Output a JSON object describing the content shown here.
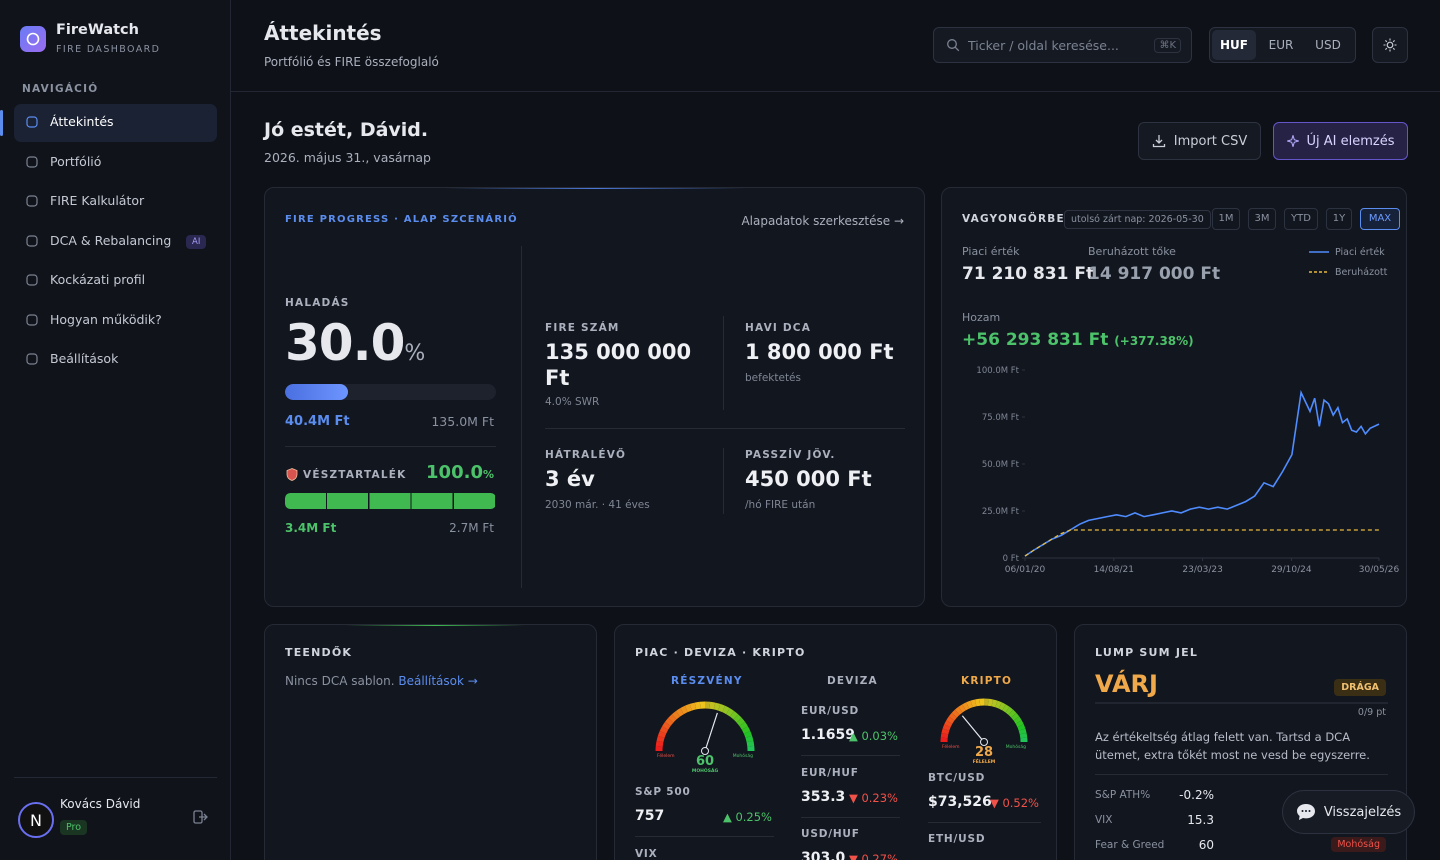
{
  "sidebar": {
    "app_name": "FireWatch",
    "app_subtitle": "FIRE DASHBOARD",
    "nav_heading": "NAVIGÁCIÓ",
    "nav": [
      "Áttekintés",
      "Portfólió",
      "FIRE Kalkulátor",
      "DCA & Rebalancing",
      "Kockázati profil",
      "Hogyan működik?",
      "Beállítások"
    ],
    "nav_badge": "AI",
    "user": {
      "initial": "N",
      "name": "Kovács Dávid",
      "plan": "Pro"
    }
  },
  "header": {
    "title": "Áttekintés",
    "subtitle": "Portfólió és FIRE összefoglaló",
    "search_placeholder": "Ticker / oldal keresése...",
    "search_shortcut": "⌘K",
    "currencies": [
      "HUF",
      "EUR",
      "USD"
    ]
  },
  "greeting": {
    "title": "Jó estét, Dávid.",
    "date": "2026. május 31., vasárnap",
    "buttons": [
      "Import CSV",
      "Új AI elemzés"
    ]
  },
  "fire": {
    "title": "FIRE PROGRESS · ALAP SZCENÁRIÓ",
    "edit_link": "Alapadatok szerkesztése →",
    "progress": {
      "label": "HALADÁS",
      "value": 30,
      "value_label": "30.0",
      "unit": "%",
      "current": "40.4M Ft",
      "target": "135.0M Ft"
    },
    "emergency": {
      "label": "VÉSZTARTALÉK",
      "value": 100,
      "value_label": "100.0",
      "unit": "%",
      "current": "3.4M Ft",
      "target": "2.7M Ft"
    },
    "stats": [
      {
        "label": "FIRE SZÁM",
        "value": "135 000 000 Ft",
        "note": "4.0% SWR"
      },
      {
        "label": "HAVI DCA",
        "value": "1 800 000 Ft",
        "note": "befektetés"
      },
      {
        "label": "HÁTRALÉVŐ",
        "value": "3 év",
        "note": "2030 már. · 41 éves"
      },
      {
        "label": "PASSZÍV JÖV.",
        "value": "450 000 Ft",
        "note": "/hó FIRE után"
      }
    ]
  },
  "wealth": {
    "range_note": "utolsó zárt nap: 2026-05-30",
    "ranges": [
      "1M",
      "3M",
      "YTD",
      "1Y",
      "MAX"
    ],
    "market_label": "Piaci érték",
    "market_value": "71 210 831 Ft",
    "invested_label": "Beruházott tőke",
    "invested_value": "14 917 000 Ft",
    "return_label": "Hozam",
    "return_value": "+56 293 831 Ft",
    "return_pct": "(+377.38%)"
  },
  "chart_data": {
    "type": "line",
    "title": "VAGYONGÖRBE",
    "x": [
      "2020-01-06",
      "2020-03-01",
      "2020-05-01",
      "2020-07-01",
      "2020-09-01",
      "2020-11-01",
      "2021-01-01",
      "2021-03-01",
      "2021-05-01",
      "2021-07-01",
      "2021-09-01",
      "2021-11-01",
      "2022-01-01",
      "2022-03-01",
      "2022-05-01",
      "2022-07-01",
      "2022-09-01",
      "2022-11-01",
      "2023-01-01",
      "2023-03-01",
      "2023-05-01",
      "2023-07-01",
      "2023-09-01",
      "2023-11-01",
      "2024-01-01",
      "2024-03-01",
      "2024-05-01",
      "2024-07-01",
      "2024-09-01",
      "2024-11-01",
      "2025-01-01",
      "2025-03-01",
      "2025-04-01",
      "2025-05-01",
      "2025-06-01",
      "2025-07-01",
      "2025-08-01",
      "2025-09-01",
      "2025-10-01",
      "2025-11-01",
      "2025-12-01",
      "2026-01-01",
      "2026-02-01",
      "2026-03-01",
      "2026-04-01",
      "2026-05-30"
    ],
    "series": [
      {
        "name": "Piaci érték",
        "color": "#4f8cff",
        "style": "solid",
        "values": [
          1000000,
          4000000,
          7000000,
          10000000,
          12000000,
          15000000,
          18000000,
          20000000,
          21000000,
          22000000,
          23000000,
          22000000,
          24000000,
          22000000,
          23000000,
          24000000,
          25000000,
          24000000,
          26000000,
          27000000,
          26000000,
          27000000,
          26000000,
          28000000,
          30000000,
          33000000,
          40000000,
          38000000,
          46000000,
          55000000,
          88000000,
          78000000,
          85000000,
          70000000,
          84000000,
          82000000,
          76000000,
          80000000,
          72000000,
          74000000,
          68000000,
          67000000,
          70000000,
          66000000,
          69000000,
          71210831
        ]
      },
      {
        "name": "Beruházott",
        "color": "#e8b93c",
        "style": "dashed",
        "values": [
          1000000,
          4000000,
          7000000,
          10000000,
          13000000,
          14917000,
          14917000,
          14917000,
          14917000,
          14917000,
          14917000,
          14917000,
          14917000,
          14917000,
          14917000,
          14917000,
          14917000,
          14917000,
          14917000,
          14917000,
          14917000,
          14917000,
          14917000,
          14917000,
          14917000,
          14917000,
          14917000,
          14917000,
          14917000,
          14917000,
          14917000,
          14917000,
          14917000,
          14917000,
          14917000,
          14917000,
          14917000,
          14917000,
          14917000,
          14917000,
          14917000,
          14917000,
          14917000,
          14917000,
          14917000,
          14917000
        ]
      }
    ],
    "xlim": [
      "2020-01-06",
      "2026-05-30"
    ],
    "xticks": [
      {
        "value": "2020-01-06",
        "label": "06/01/20"
      },
      {
        "value": "2021-08-14",
        "label": "14/08/21"
      },
      {
        "value": "2023-03-23",
        "label": "23/03/23"
      },
      {
        "value": "2024-10-29",
        "label": "29/10/24"
      },
      {
        "value": "2026-05-30",
        "label": "30/05/26"
      }
    ],
    "ylim": [
      0,
      100000000
    ],
    "yticks": [
      {
        "value": 0,
        "label": "0 Ft"
      },
      {
        "value": 25000000,
        "label": "25.0M Ft"
      },
      {
        "value": 50000000,
        "label": "50.0M Ft"
      },
      {
        "value": 75000000,
        "label": "75.0M Ft"
      },
      {
        "value": 100000000,
        "label": "100.0M Ft"
      }
    ],
    "grid": false,
    "legend": "top-right"
  },
  "todos": {
    "title": "TEENDŐK",
    "text": "Nincs DCA sablon.",
    "link": "Beállítások →"
  },
  "market": {
    "title": "PIAC · DEVIZA · KRIPTO",
    "columns": [
      "RÉSZVÉNY",
      "DEVIZA",
      "KRIPTO"
    ],
    "gauges": [
      {
        "value": 60,
        "range": [
          0,
          100
        ],
        "label": "MOHÓSÁG",
        "low": "Félelem",
        "high": "Mohóság"
      },
      {
        "value": 28,
        "range": [
          0,
          100
        ],
        "label": "FÉLELEM",
        "low": "Félelem",
        "high": "Mohóság"
      }
    ],
    "stocks": [
      {
        "name": "S&P 500",
        "price": "757",
        "change": "▲ 0.25%"
      },
      {
        "name": "VIX"
      }
    ],
    "fx": [
      {
        "name": "EUR/USD",
        "price": "1.1659",
        "change": "▲ 0.03%"
      },
      {
        "name": "EUR/HUF",
        "price": "353.3",
        "change": "▼ 0.23%"
      },
      {
        "name": "USD/HUF",
        "price": "303.0",
        "change": "▼ 0.27%"
      }
    ],
    "crypto": [
      {
        "name": "BTC/USD",
        "price": "$73,526",
        "change": "▼ 0.52%"
      },
      {
        "name": "ETH/USD"
      }
    ]
  },
  "lump_sum": {
    "title": "LUMP SUM JEL",
    "signal": "VÁRJ",
    "badge": "DRÁGA",
    "score": "0/9 pt",
    "text": "Az értékeltség átlag felett van. Tartsd a DCA ütemet, extra tőkét most ne vesd be egyszerre.",
    "rows": [
      {
        "label": "S&P ATH%",
        "value": "-0.2%"
      },
      {
        "label": "VIX",
        "value": "15.3"
      },
      {
        "label": "Fear & Greed",
        "value": "60",
        "tag": "Mohóság"
      }
    ]
  },
  "feedback": "Visszajelzés"
}
